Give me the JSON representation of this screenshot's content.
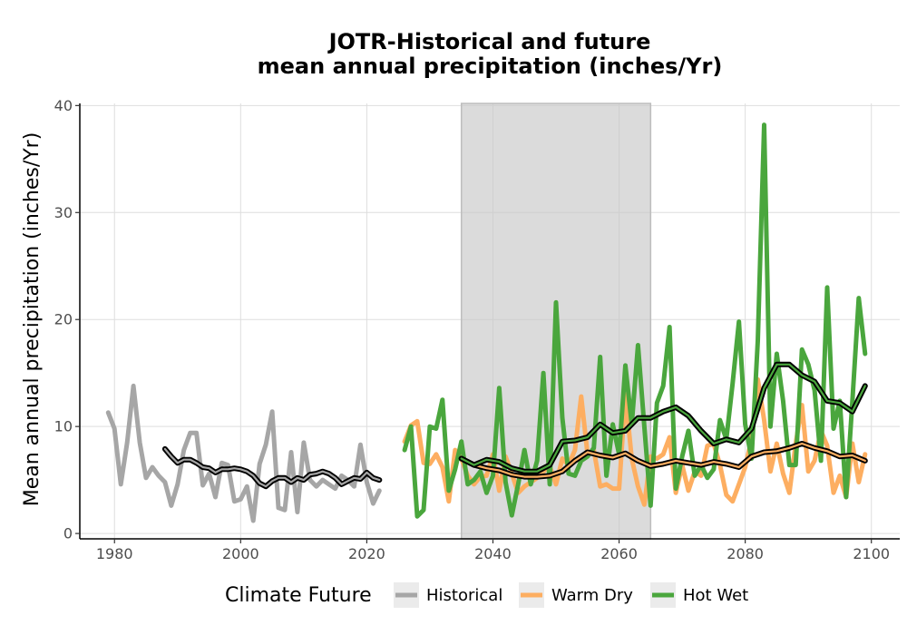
{
  "chart_data": {
    "type": "line",
    "title_lines": [
      "JOTR-Historical and future",
      "mean annual precipitation (inches/Yr)"
    ],
    "xlabel": "",
    "ylabel": "Mean annual precipitation (inches/Yr)",
    "xlim": [
      1974.5,
      2104.5
    ],
    "ylim": [
      -0.5,
      40.2
    ],
    "x_ticks": [
      1980,
      2000,
      2020,
      2040,
      2060,
      2080,
      2100
    ],
    "y_ticks": [
      0,
      10,
      20,
      30,
      40
    ],
    "grid": true,
    "shaded_period": [
      2035,
      2065
    ],
    "legend": {
      "title": "Climate Future",
      "position": "bottom"
    },
    "series": [
      {
        "name": "Historical",
        "color": "#a6a6a6",
        "x": [
          1979,
          1980,
          1981,
          1982,
          1983,
          1984,
          1985,
          1986,
          1987,
          1988,
          1989,
          1990,
          1991,
          1992,
          1993,
          1994,
          1995,
          1996,
          1997,
          1998,
          1999,
          2000,
          2001,
          2002,
          2003,
          2004,
          2005,
          2006,
          2007,
          2008,
          2009,
          2010,
          2011,
          2012,
          2013,
          2014,
          2015,
          2016,
          2017,
          2018,
          2019,
          2020,
          2021,
          2022
        ],
        "y": [
          11.3,
          9.8,
          4.6,
          8.5,
          13.8,
          8.5,
          5.2,
          6.2,
          5.4,
          4.8,
          2.6,
          4.6,
          7.8,
          9.4,
          9.4,
          4.5,
          5.6,
          3.4,
          6.6,
          6.4,
          3.0,
          3.2,
          4.4,
          1.2,
          6.5,
          8.3,
          11.4,
          2.4,
          2.2,
          7.6,
          2.0,
          8.5,
          5.0,
          4.4,
          5.0,
          4.6,
          4.2,
          5.4,
          5.0,
          4.4,
          8.3,
          4.8,
          2.8,
          4.0
        ]
      },
      {
        "name": "Warm Dry",
        "color": "#fdae61",
        "x": [
          2026,
          2027,
          2028,
          2029,
          2030,
          2031,
          2032,
          2033,
          2034,
          2035,
          2036,
          2037,
          2038,
          2039,
          2040,
          2041,
          2042,
          2043,
          2044,
          2045,
          2046,
          2047,
          2048,
          2049,
          2050,
          2051,
          2052,
          2053,
          2054,
          2055,
          2056,
          2057,
          2058,
          2059,
          2060,
          2061,
          2062,
          2063,
          2064,
          2065,
          2066,
          2067,
          2068,
          2069,
          2070,
          2071,
          2072,
          2073,
          2074,
          2075,
          2076,
          2077,
          2078,
          2079,
          2080,
          2081,
          2082,
          2083,
          2084,
          2085,
          2086,
          2087,
          2088,
          2089,
          2090,
          2091,
          2092,
          2093,
          2094,
          2095,
          2096,
          2097,
          2098,
          2099
        ],
        "y": [
          8.6,
          10.1,
          10.5,
          6.6,
          6.5,
          7.4,
          6.2,
          3.0,
          7.8,
          7.0,
          5.4,
          4.6,
          5.3,
          5.4,
          7.4,
          4.0,
          7.2,
          5.6,
          3.8,
          4.4,
          4.8,
          5.2,
          5.8,
          6.3,
          4.6,
          7.0,
          6.4,
          7.8,
          12.8,
          7.4,
          7.8,
          4.4,
          4.6,
          4.2,
          4.2,
          13.0,
          7.0,
          4.4,
          2.7,
          7.2,
          7.0,
          7.4,
          9.0,
          3.8,
          6.4,
          4.0,
          5.8,
          5.4,
          8.2,
          8.4,
          6.4,
          3.6,
          3.0,
          4.6,
          6.2,
          8.8,
          14.4,
          10.6,
          5.8,
          8.4,
          5.6,
          3.8,
          8.4,
          12.0,
          5.8,
          6.8,
          9.6,
          8.2,
          3.8,
          5.4,
          3.4,
          8.4,
          4.8,
          7.4
        ]
      },
      {
        "name": "Hot Wet",
        "color": "#4aa63d",
        "x": [
          2026,
          2027,
          2028,
          2029,
          2030,
          2031,
          2032,
          2033,
          2034,
          2035,
          2036,
          2037,
          2038,
          2039,
          2040,
          2041,
          2042,
          2043,
          2044,
          2045,
          2046,
          2047,
          2048,
          2049,
          2050,
          2051,
          2052,
          2053,
          2054,
          2055,
          2056,
          2057,
          2058,
          2059,
          2060,
          2061,
          2062,
          2063,
          2064,
          2065,
          2066,
          2067,
          2068,
          2069,
          2070,
          2071,
          2072,
          2073,
          2074,
          2075,
          2076,
          2077,
          2078,
          2079,
          2080,
          2081,
          2082,
          2083,
          2084,
          2085,
          2086,
          2087,
          2088,
          2089,
          2090,
          2091,
          2092,
          2093,
          2094,
          2095,
          2096,
          2097,
          2098,
          2099
        ],
        "y": [
          7.8,
          10.0,
          1.6,
          2.2,
          10.0,
          9.8,
          12.5,
          4.0,
          6.0,
          8.6,
          4.6,
          5.0,
          5.8,
          3.8,
          5.4,
          13.6,
          4.8,
          1.7,
          4.6,
          7.8,
          4.6,
          6.8,
          15.0,
          4.6,
          21.6,
          10.8,
          5.6,
          5.4,
          6.8,
          7.2,
          8.0,
          16.5,
          5.4,
          10.2,
          7.4,
          15.7,
          10.2,
          17.6,
          10.0,
          2.6,
          12.2,
          13.8,
          19.3,
          4.2,
          7.2,
          9.6,
          5.4,
          6.4,
          5.2,
          6.0,
          10.6,
          8.8,
          14.0,
          19.8,
          10.2,
          7.0,
          18.0,
          38.2,
          10.0,
          16.8,
          12.4,
          6.4,
          6.4,
          17.2,
          15.8,
          13.4,
          6.8,
          23.0,
          9.8,
          12.4,
          3.4,
          12.4,
          22.0,
          16.8
        ]
      }
    ],
    "smoothed": [
      {
        "of": "Historical",
        "x": [
          1988,
          1989,
          1990,
          1991,
          1992,
          1993,
          1994,
          1995,
          1996,
          1997,
          1998,
          1999,
          2000,
          2001,
          2002,
          2003,
          2004,
          2005,
          2006,
          2007,
          2008,
          2009,
          2010,
          2011,
          2012,
          2013,
          2014,
          2015,
          2016,
          2017,
          2018,
          2019,
          2020,
          2021,
          2022
        ],
        "y": [
          7.9,
          7.2,
          6.6,
          6.9,
          6.9,
          6.6,
          6.2,
          6.1,
          5.7,
          6.0,
          6.0,
          6.1,
          6.0,
          5.8,
          5.4,
          4.7,
          4.4,
          4.9,
          5.2,
          5.2,
          4.8,
          5.2,
          5.0,
          5.5,
          5.6,
          5.8,
          5.6,
          5.2,
          4.6,
          4.9,
          5.2,
          5.1,
          5.7,
          5.2,
          5.0
        ]
      },
      {
        "of": "Warm Dry",
        "x": [
          2035,
          2037,
          2039,
          2041,
          2043,
          2045,
          2047,
          2049,
          2051,
          2053,
          2055,
          2057,
          2059,
          2061,
          2063,
          2065,
          2067,
          2069,
          2071,
          2073,
          2075,
          2077,
          2079,
          2081,
          2083,
          2085,
          2087,
          2089,
          2091,
          2093,
          2095,
          2097,
          2099
        ],
        "y": [
          7.0,
          6.4,
          6.1,
          5.9,
          5.5,
          5.3,
          5.3,
          5.4,
          5.8,
          6.8,
          7.6,
          7.3,
          7.1,
          7.5,
          6.8,
          6.3,
          6.5,
          6.8,
          6.6,
          6.4,
          6.7,
          6.5,
          6.2,
          7.2,
          7.6,
          7.7,
          8.0,
          8.4,
          8.0,
          7.7,
          7.2,
          7.3,
          6.8
        ]
      },
      {
        "of": "Hot Wet",
        "x": [
          2035,
          2037,
          2039,
          2041,
          2043,
          2045,
          2047,
          2049,
          2051,
          2053,
          2055,
          2057,
          2059,
          2061,
          2063,
          2065,
          2067,
          2069,
          2071,
          2073,
          2075,
          2077,
          2079,
          2081,
          2083,
          2085,
          2087,
          2089,
          2091,
          2093,
          2095,
          2097,
          2099
        ],
        "y": [
          7.0,
          6.4,
          6.9,
          6.7,
          6.1,
          5.8,
          5.8,
          6.4,
          8.6,
          8.7,
          9.0,
          10.2,
          9.4,
          9.6,
          10.8,
          10.8,
          11.4,
          11.8,
          11.0,
          9.6,
          8.4,
          8.8,
          8.5,
          9.8,
          13.6,
          15.8,
          15.8,
          14.8,
          14.2,
          12.4,
          12.2,
          11.4,
          13.8
        ]
      }
    ]
  }
}
